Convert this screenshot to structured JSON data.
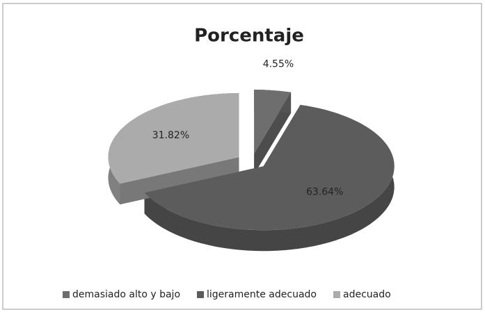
{
  "chart_data": {
    "type": "pie",
    "title": "Porcentaje",
    "categories": [
      "demasiado alto y bajo",
      "ligeramente adecuado",
      "adecuado"
    ],
    "values": [
      4.55,
      63.64,
      31.82
    ],
    "value_labels": [
      "4.55%",
      "63.64%",
      "31.82%"
    ],
    "colors": [
      "#6e6e6e",
      "#5c5c5c",
      "#ababab"
    ],
    "legend": "bottom"
  }
}
